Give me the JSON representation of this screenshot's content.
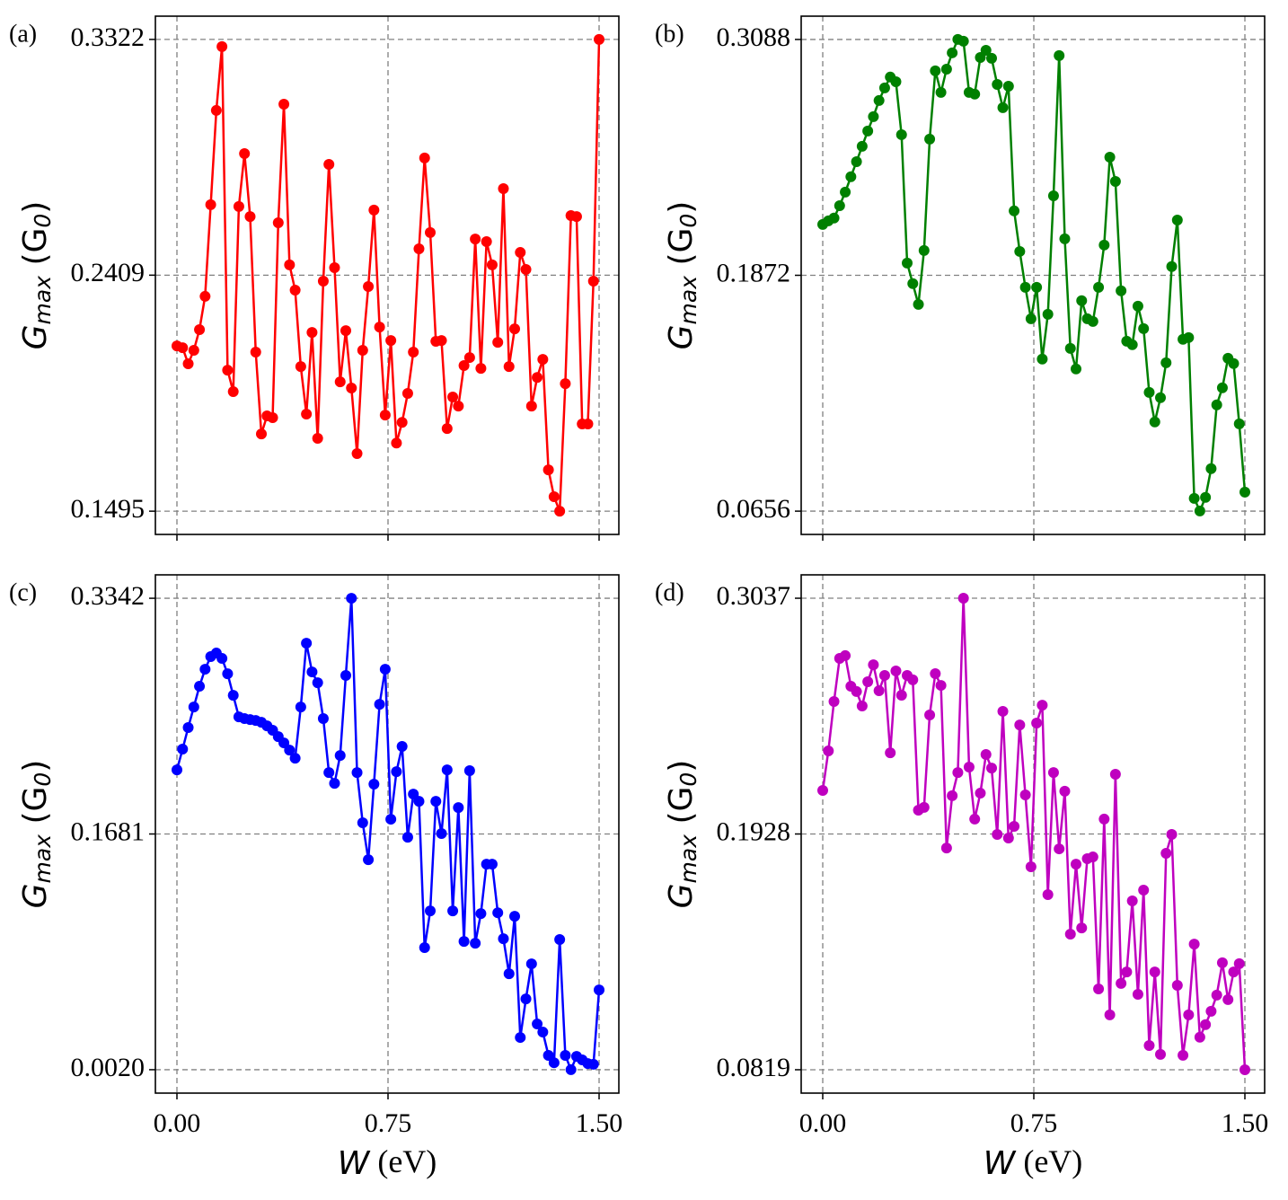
{
  "chart_data": [
    {
      "type": "line",
      "panel_label": "(a)",
      "color": "#ff0000",
      "ylabel": [
        "G",
        "max",
        " (G",
        "0",
        ")"
      ],
      "x": [
        0,
        0.02,
        0.04,
        0.06,
        0.08,
        0.1,
        0.12,
        0.14,
        0.16,
        0.18,
        0.2,
        0.22,
        0.24,
        0.26,
        0.28,
        0.3,
        0.32,
        0.34,
        0.36,
        0.38,
        0.4,
        0.42,
        0.44,
        0.46,
        0.48,
        0.5,
        0.52,
        0.54,
        0.56,
        0.58,
        0.6,
        0.62,
        0.64,
        0.66,
        0.68,
        0.7,
        0.72,
        0.74,
        0.76,
        0.78,
        0.8,
        0.82,
        0.84,
        0.86,
        0.88,
        0.9,
        0.92,
        0.94,
        0.96,
        0.98,
        1,
        1.02,
        1.04,
        1.06,
        1.08,
        1.1,
        1.12,
        1.14,
        1.16,
        1.18,
        1.2,
        1.22,
        1.24,
        1.26,
        1.28,
        1.3,
        1.32,
        1.34,
        1.36,
        1.38,
        1.4,
        1.42,
        1.44,
        1.46,
        1.48,
        1.5
      ],
      "values": [
        0.2135,
        0.2128,
        0.2066,
        0.2118,
        0.2198,
        0.2327,
        0.2682,
        0.3047,
        0.3294,
        0.2041,
        0.1958,
        0.2675,
        0.288,
        0.2636,
        0.2111,
        0.1794,
        0.1864,
        0.1857,
        0.2612,
        0.3071,
        0.2449,
        0.2351,
        0.2055,
        0.1871,
        0.2187,
        0.1777,
        0.2386,
        0.2838,
        0.2438,
        0.1996,
        0.2194,
        0.1972,
        0.1718,
        0.2118,
        0.2365,
        0.2661,
        0.2208,
        0.1867,
        0.2156,
        0.1759,
        0.1839,
        0.1951,
        0.2111,
        0.2511,
        0.2863,
        0.2574,
        0.2153,
        0.2156,
        0.1815,
        0.1937,
        0.1902,
        0.2059,
        0.209,
        0.2549,
        0.2048,
        0.2539,
        0.2449,
        0.2149,
        0.2744,
        0.2055,
        0.2201,
        0.2497,
        0.2431,
        0.1902,
        0.2013,
        0.2083,
        0.1655,
        0.1551,
        0.1495,
        0.1989,
        0.264,
        0.2636,
        0.1833,
        0.1833,
        0.2386,
        0.3322
      ],
      "xlim": [
        -0.0766,
        1.5702
      ],
      "xticks": [
        0,
        0.75,
        1.5
      ],
      "ylim": [
        0.1405,
        0.3412
      ],
      "yticks": [
        0.1495,
        0.2409,
        0.3322
      ],
      "grid": true
    },
    {
      "type": "line",
      "panel_label": "(b)",
      "color": "#008000",
      "ylabel": [
        "G",
        "max",
        " (G",
        "0",
        ")"
      ],
      "x": [
        0,
        0.02,
        0.04,
        0.06,
        0.08,
        0.1,
        0.12,
        0.14,
        0.16,
        0.18,
        0.2,
        0.22,
        0.24,
        0.26,
        0.28,
        0.3,
        0.32,
        0.34,
        0.36,
        0.38,
        0.4,
        0.42,
        0.44,
        0.46,
        0.48,
        0.5,
        0.52,
        0.54,
        0.56,
        0.58,
        0.6,
        0.62,
        0.64,
        0.66,
        0.68,
        0.7,
        0.72,
        0.74,
        0.76,
        0.78,
        0.8,
        0.82,
        0.84,
        0.86,
        0.88,
        0.9,
        0.92,
        0.94,
        0.96,
        0.98,
        1,
        1.02,
        1.04,
        1.06,
        1.08,
        1.1,
        1.12,
        1.14,
        1.16,
        1.18,
        1.2,
        1.22,
        1.24,
        1.26,
        1.28,
        1.3,
        1.32,
        1.34,
        1.36,
        1.38,
        1.4,
        1.42,
        1.44,
        1.46,
        1.48,
        1.5
      ],
      "values": [
        0.2134,
        0.2153,
        0.2167,
        0.2231,
        0.2301,
        0.238,
        0.2458,
        0.2537,
        0.2616,
        0.269,
        0.2773,
        0.2838,
        0.2894,
        0.287,
        0.2597,
        0.1935,
        0.1829,
        0.1722,
        0.2,
        0.2574,
        0.2926,
        0.2815,
        0.2935,
        0.3019,
        0.3088,
        0.3079,
        0.2815,
        0.2806,
        0.2995,
        0.3032,
        0.2991,
        0.2856,
        0.2736,
        0.2847,
        0.2204,
        0.1995,
        0.181,
        0.1648,
        0.181,
        0.144,
        0.1671,
        0.2282,
        0.3005,
        0.206,
        0.1495,
        0.1389,
        0.1741,
        0.1648,
        0.1634,
        0.181,
        0.2028,
        0.2481,
        0.2356,
        0.1792,
        0.1532,
        0.1514,
        0.1713,
        0.1597,
        0.1268,
        0.1116,
        0.1241,
        0.1421,
        0.1917,
        0.2157,
        0.1542,
        0.1551,
        0.0722,
        0.0657,
        0.0727,
        0.0875,
        0.1204,
        0.1292,
        0.1444,
        0.1417,
        0.1106,
        0.0754
      ],
      "xlim": [
        -0.0766,
        1.5702
      ],
      "xticks": [
        0,
        0.75,
        1.5
      ],
      "ylim": [
        0.0536,
        0.3208
      ],
      "yticks": [
        0.0656,
        0.1872,
        0.3088
      ],
      "grid": true
    },
    {
      "type": "line",
      "panel_label": "(c)",
      "color": "#0000ff",
      "ylabel": [
        "G",
        "max",
        " (G",
        "0",
        ")"
      ],
      "xlabel": [
        "W",
        " (eV)"
      ],
      "x": [
        0,
        0.02,
        0.04,
        0.06,
        0.08,
        0.1,
        0.12,
        0.14,
        0.16,
        0.18,
        0.2,
        0.22,
        0.24,
        0.26,
        0.28,
        0.3,
        0.32,
        0.34,
        0.36,
        0.38,
        0.4,
        0.42,
        0.44,
        0.46,
        0.48,
        0.5,
        0.52,
        0.54,
        0.56,
        0.58,
        0.6,
        0.62,
        0.64,
        0.66,
        0.68,
        0.7,
        0.72,
        0.74,
        0.76,
        0.78,
        0.8,
        0.82,
        0.84,
        0.86,
        0.88,
        0.9,
        0.92,
        0.94,
        0.96,
        0.98,
        1,
        1.02,
        1.04,
        1.06,
        1.08,
        1.1,
        1.12,
        1.14,
        1.16,
        1.18,
        1.2,
        1.22,
        1.24,
        1.26,
        1.28,
        1.3,
        1.32,
        1.34,
        1.36,
        1.38,
        1.4,
        1.42,
        1.44,
        1.46,
        1.48,
        1.5
      ],
      "values": [
        0.2133,
        0.2279,
        0.2431,
        0.2576,
        0.2722,
        0.2842,
        0.2931,
        0.2956,
        0.2918,
        0.281,
        0.2658,
        0.2506,
        0.2494,
        0.2487,
        0.2481,
        0.2468,
        0.2443,
        0.2412,
        0.2367,
        0.2323,
        0.2272,
        0.2215,
        0.2576,
        0.3025,
        0.2823,
        0.2747,
        0.2494,
        0.2114,
        0.2038,
        0.2234,
        0.2798,
        0.3342,
        0.2114,
        0.176,
        0.15,
        0.2032,
        0.2595,
        0.2842,
        0.1785,
        0.212,
        0.2298,
        0.1658,
        0.1962,
        0.1911,
        0.088,
        0.1139,
        0.1911,
        0.1684,
        0.2133,
        0.1139,
        0.1867,
        0.0924,
        0.2127,
        0.0911,
        0.112,
        0.1468,
        0.1468,
        0.1126,
        0.0943,
        0.0696,
        0.1101,
        0.0247,
        0.0519,
        0.0766,
        0.0342,
        0.0285,
        0.0121,
        0.0069,
        0.0937,
        0.0121,
        0.002,
        0.0114,
        0.0089,
        0.0063,
        0.0058,
        0.0582
      ],
      "xlim": [
        -0.0766,
        1.5702
      ],
      "xticks": [
        {
          "value": 0,
          "label": "0.00"
        },
        {
          "value": 0.75,
          "label": "0.75"
        },
        {
          "value": 1.5,
          "label": "1.50"
        }
      ],
      "ylim": [
        -0.0145,
        0.3507
      ],
      "yticks": [
        {
          "value": 0.002,
          "label": "0.0020"
        },
        0.1681,
        0.3342
      ],
      "grid": true
    },
    {
      "type": "line",
      "panel_label": "(d)",
      "color": "#bf00bf",
      "ylabel": [
        "G",
        "max",
        " (G",
        "0",
        ")"
      ],
      "xlabel": [
        "W",
        " (eV)"
      ],
      "x": [
        0,
        0.02,
        0.04,
        0.06,
        0.08,
        0.1,
        0.12,
        0.14,
        0.16,
        0.18,
        0.2,
        0.22,
        0.24,
        0.26,
        0.28,
        0.3,
        0.32,
        0.34,
        0.36,
        0.38,
        0.4,
        0.42,
        0.44,
        0.46,
        0.48,
        0.5,
        0.52,
        0.54,
        0.56,
        0.58,
        0.6,
        0.62,
        0.64,
        0.66,
        0.68,
        0.7,
        0.72,
        0.74,
        0.76,
        0.78,
        0.8,
        0.82,
        0.84,
        0.86,
        0.88,
        0.9,
        0.92,
        0.94,
        0.96,
        0.98,
        1,
        1.02,
        1.04,
        1.06,
        1.08,
        1.1,
        1.12,
        1.14,
        1.16,
        1.18,
        1.2,
        1.22,
        1.24,
        1.26,
        1.28,
        1.3,
        1.32,
        1.34,
        1.36,
        1.38,
        1.4,
        1.42,
        1.44,
        1.46,
        1.48,
        1.5
      ],
      "values": [
        0.2133,
        0.2319,
        0.2551,
        0.2754,
        0.2767,
        0.2623,
        0.2598,
        0.253,
        0.2644,
        0.2724,
        0.2602,
        0.2674,
        0.231,
        0.2695,
        0.2581,
        0.2674,
        0.2653,
        0.204,
        0.2053,
        0.2488,
        0.2682,
        0.2627,
        0.1862,
        0.2108,
        0.2217,
        0.3037,
        0.2243,
        0.1998,
        0.212,
        0.2302,
        0.2238,
        0.1926,
        0.2505,
        0.1909,
        0.1964,
        0.2441,
        0.2112,
        0.1774,
        0.245,
        0.2534,
        0.1643,
        0.2217,
        0.1858,
        0.2129,
        0.1457,
        0.1786,
        0.1486,
        0.1812,
        0.182,
        0.1199,
        0.1998,
        0.1077,
        0.2209,
        0.1225,
        0.1279,
        0.1613,
        0.1174,
        0.1664,
        0.0933,
        0.1279,
        0.0891,
        0.1837,
        0.1926,
        0.1216,
        0.0887,
        0.1077,
        0.141,
        0.0972,
        0.1031,
        0.1094,
        0.117,
        0.1322,
        0.1149,
        0.1279,
        0.1318,
        0.0819
      ],
      "xlim": [
        -0.0766,
        1.5702
      ],
      "xticks": [
        {
          "value": 0,
          "label": "0.00"
        },
        {
          "value": 0.75,
          "label": "0.75"
        },
        {
          "value": 1.5,
          "label": "1.50"
        }
      ],
      "ylim": [
        0.0709,
        0.3147
      ],
      "yticks": [
        0.0819,
        0.1928,
        0.3037
      ],
      "grid": true
    }
  ]
}
